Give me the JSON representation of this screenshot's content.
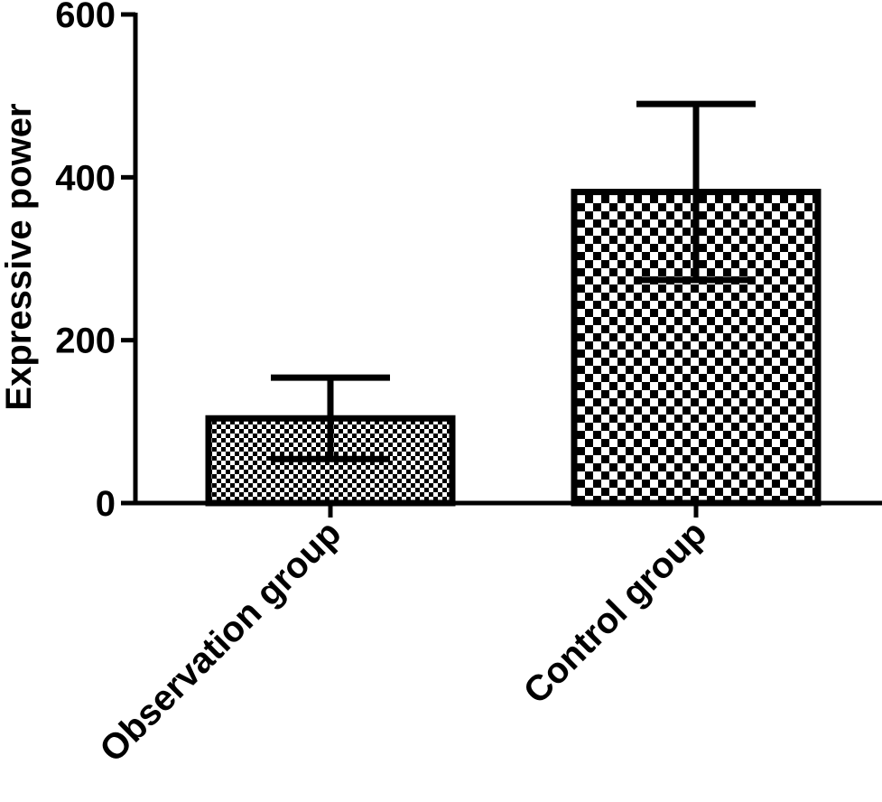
{
  "chart_data": {
    "type": "bar",
    "title": "",
    "xlabel": "",
    "ylabel": "Expressive power",
    "categories": [
      "Observation group",
      "Control group"
    ],
    "values": [
      104,
      382
    ],
    "error": [
      50,
      108
    ],
    "ylim": [
      0,
      600
    ],
    "yticks": [
      "0",
      "200",
      "400",
      "600"
    ],
    "grid": false,
    "legend": "none",
    "colors": {
      "ink": "#000000",
      "background": "#ffffff"
    }
  }
}
